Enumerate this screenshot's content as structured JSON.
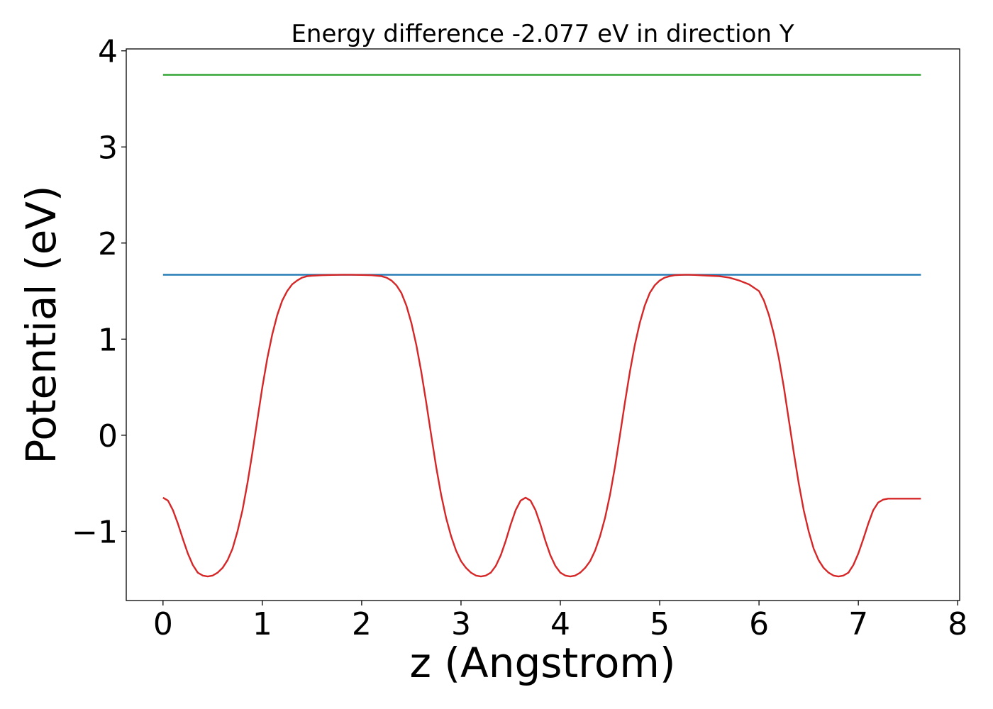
{
  "chart_data": {
    "type": "line",
    "title": "Energy difference -2.077 eV in direction Y",
    "xlabel": "z (Angstrom)",
    "ylabel": "Potential (eV)",
    "xlim": [
      -0.37,
      8.02
    ],
    "ylim": [
      -1.72,
      4.02
    ],
    "xticks": [
      0,
      1,
      2,
      3,
      4,
      5,
      6,
      7,
      8
    ],
    "xtick_labels": [
      "0",
      "1",
      "2",
      "3",
      "4",
      "5",
      "6",
      "7",
      "8"
    ],
    "yticks": [
      -1,
      0,
      1,
      2,
      3,
      4
    ],
    "ytick_labels": [
      "−1",
      "0",
      "1",
      "2",
      "3",
      "4"
    ],
    "grid": false,
    "legend": "none",
    "series": [
      {
        "color": "#2ca02c",
        "x": [
          0,
          7.63
        ],
        "y": [
          3.75,
          3.75
        ]
      },
      {
        "color": "#1f77b4",
        "x": [
          0,
          7.63
        ],
        "y": [
          1.67,
          1.67
        ]
      },
      {
        "color": "#d62728",
        "x": [
          0.0,
          0.05,
          0.1,
          0.15,
          0.2,
          0.25,
          0.3,
          0.35,
          0.4,
          0.45,
          0.5,
          0.55,
          0.6,
          0.65,
          0.7,
          0.75,
          0.8,
          0.85,
          0.9,
          0.95,
          1.0,
          1.05,
          1.1,
          1.15,
          1.2,
          1.25,
          1.3,
          1.35,
          1.4,
          1.45,
          1.5,
          1.6,
          1.7,
          1.8,
          1.9,
          2.0,
          2.1,
          2.2,
          2.25,
          2.3,
          2.35,
          2.4,
          2.45,
          2.5,
          2.55,
          2.6,
          2.65,
          2.7,
          2.75,
          2.8,
          2.85,
          2.9,
          2.95,
          3.0,
          3.05,
          3.1,
          3.15,
          3.2,
          3.25,
          3.3,
          3.35,
          3.4,
          3.45,
          3.5,
          3.55,
          3.6,
          3.65,
          3.7,
          3.75,
          3.8,
          3.85,
          3.9,
          3.95,
          4.0,
          4.05,
          4.1,
          4.15,
          4.2,
          4.25,
          4.3,
          4.35,
          4.4,
          4.45,
          4.5,
          4.55,
          4.6,
          4.65,
          4.7,
          4.75,
          4.8,
          4.85,
          4.9,
          4.95,
          5.0,
          5.05,
          5.1,
          5.15,
          5.2,
          5.25,
          5.3,
          5.35,
          5.4,
          5.5,
          5.6,
          5.7,
          5.8,
          5.9,
          6.0,
          6.05,
          6.1,
          6.15,
          6.2,
          6.25,
          6.3,
          6.35,
          6.4,
          6.45,
          6.5,
          6.55,
          6.6,
          6.65,
          6.7,
          6.75,
          6.8,
          6.85,
          6.9,
          6.95,
          7.0,
          7.05,
          7.1,
          7.15,
          7.2,
          7.25,
          7.3,
          7.35,
          7.4,
          7.45,
          7.5,
          7.55,
          7.6,
          7.63
        ],
        "y": [
          -0.65,
          -0.68,
          -0.78,
          -0.92,
          -1.08,
          -1.23,
          -1.35,
          -1.43,
          -1.46,
          -1.47,
          -1.46,
          -1.43,
          -1.38,
          -1.3,
          -1.18,
          -1.0,
          -0.78,
          -0.5,
          -0.18,
          0.16,
          0.5,
          0.8,
          1.05,
          1.25,
          1.4,
          1.5,
          1.57,
          1.61,
          1.64,
          1.655,
          1.66,
          1.665,
          1.668,
          1.67,
          1.67,
          1.668,
          1.665,
          1.655,
          1.64,
          1.61,
          1.56,
          1.48,
          1.35,
          1.17,
          0.94,
          0.66,
          0.34,
          0.0,
          -0.33,
          -0.62,
          -0.86,
          -1.05,
          -1.2,
          -1.31,
          -1.38,
          -1.43,
          -1.46,
          -1.47,
          -1.46,
          -1.43,
          -1.36,
          -1.25,
          -1.1,
          -0.93,
          -0.78,
          -0.68,
          -0.65,
          -0.68,
          -0.78,
          -0.93,
          -1.1,
          -1.25,
          -1.36,
          -1.43,
          -1.46,
          -1.47,
          -1.46,
          -1.43,
          -1.38,
          -1.31,
          -1.2,
          -1.05,
          -0.86,
          -0.62,
          -0.33,
          0.0,
          0.34,
          0.66,
          0.94,
          1.17,
          1.35,
          1.48,
          1.56,
          1.61,
          1.64,
          1.655,
          1.665,
          1.668,
          1.67,
          1.67,
          1.668,
          1.665,
          1.66,
          1.655,
          1.64,
          1.61,
          1.57,
          1.5,
          1.4,
          1.25,
          1.05,
          0.8,
          0.5,
          0.16,
          -0.18,
          -0.5,
          -0.78,
          -1.0,
          -1.18,
          -1.3,
          -1.38,
          -1.43,
          -1.46,
          -1.47,
          -1.46,
          -1.43,
          -1.35,
          -1.23,
          -1.08,
          -0.92,
          -0.78,
          -0.7,
          -0.67,
          -0.66,
          -0.66,
          -0.66,
          -0.66,
          -0.66,
          -0.66,
          -0.66,
          -0.66
        ]
      }
    ]
  }
}
